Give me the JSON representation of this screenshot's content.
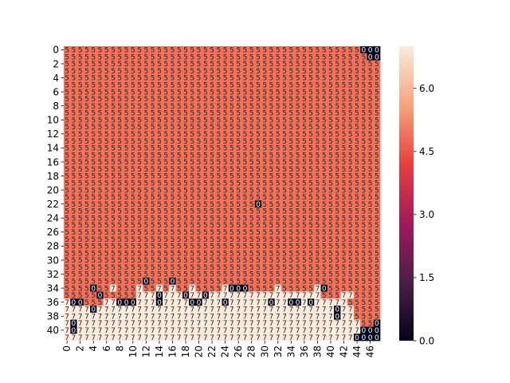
{
  "chart_data": {
    "type": "heatmap",
    "title": "",
    "xlabel": "",
    "ylabel": "",
    "annotated": true,
    "n_rows": 42,
    "n_cols": 48,
    "x_tick_labels": [
      "0",
      "2",
      "4",
      "6",
      "8",
      "10",
      "12",
      "14",
      "16",
      "18",
      "20",
      "22",
      "24",
      "26",
      "28",
      "30",
      "32",
      "34",
      "36",
      "38",
      "40",
      "42",
      "44",
      "46"
    ],
    "y_tick_labels": [
      "0",
      "2",
      "4",
      "6",
      "8",
      "10",
      "12",
      "14",
      "16",
      "18",
      "20",
      "22",
      "24",
      "26",
      "28",
      "30",
      "32",
      "34",
      "36",
      "38",
      "40"
    ],
    "colorbar": {
      "vmin": 0.0,
      "vmax": 7.0,
      "ticks": [
        "0.0",
        "1.5",
        "3.0",
        "4.5",
        "6.0"
      ],
      "colormap": "rocket",
      "color_stops": [
        "#03051a",
        "#4c1d4b",
        "#a11a5b",
        "#e83f3f",
        "#f6a47c",
        "#faebdd"
      ]
    },
    "value_colors": {
      "0": "#03051a",
      "5": "#f1715a",
      "7": "#faebdd"
    },
    "matrix": [
      "555555555555555555555555555555555555555555555000",
      "555555555555555555555555555555555555555555555500",
      "555555555555555555555555555555555555555555555555",
      "555555555555555555555555555555555555555555555555",
      "555555555555555555555555555555555555555555555555",
      "555555555555555555555555555555555555555555555555",
      "555555555555555555555555555555555555555555555555",
      "555555555555555555555555555555555555555555555555",
      "555555555555555555555555555555555555555555555555",
      "555555555555555555555555555555555555555555555555",
      "555555555555555555555555555555555555555555555555",
      "555555555555555555555555555555555555555555555555",
      "555555555555555555555555555555555555555555555555",
      "555555555555555555555555555555555555555555555555",
      "555555555555555555555555555555555555555555555555",
      "555555555555555555555555555555555555555555555555",
      "555555555555555555555555555555555555555555555555",
      "555555555555555555555555555555555555555555555555",
      "555555555555555555555555555555555555555555555555",
      "555555555555555555555555555555555555555555555555",
      "555555555555555555555555555555555555555555555555",
      "555555555555555555555555555555555555555555555555",
      "555555555555555555555555555550555555555555555555",
      "555555555555555555555555555555555555555555555555",
      "555555555555555555555555555555555555555555555555",
      "555555555555555555555555555555555555555555555555",
      "555555555555555555555555555555555555555555555555",
      "555555555555555555555555555555555555555555555555",
      "555555555555555555555555555555555555555555555555",
      "555555555555555555555555555555555555555555555555",
      "555555555555555555555555555555555555555555555555",
      "555555555555555555555555555555555555555555555555",
      "555555555555555555555555555555555555555555555555",
      "555555555555055505555555555555555555555555555555",
      "555505575557557575575555700055557555557055555555",
      "555550555557770777077077777777777777777555775555",
      "700555770007770777700777077777707700707777755555",
      "777707777777777777777777777777777777777770775555",
      "777777777777777777777777777777777777777770775555",
      "707777777777777777777777777777777777777777777550",
      "707777777777777777777777777777777777777777777000",
      "777777777777777777777777777777777777777777770000"
    ]
  }
}
